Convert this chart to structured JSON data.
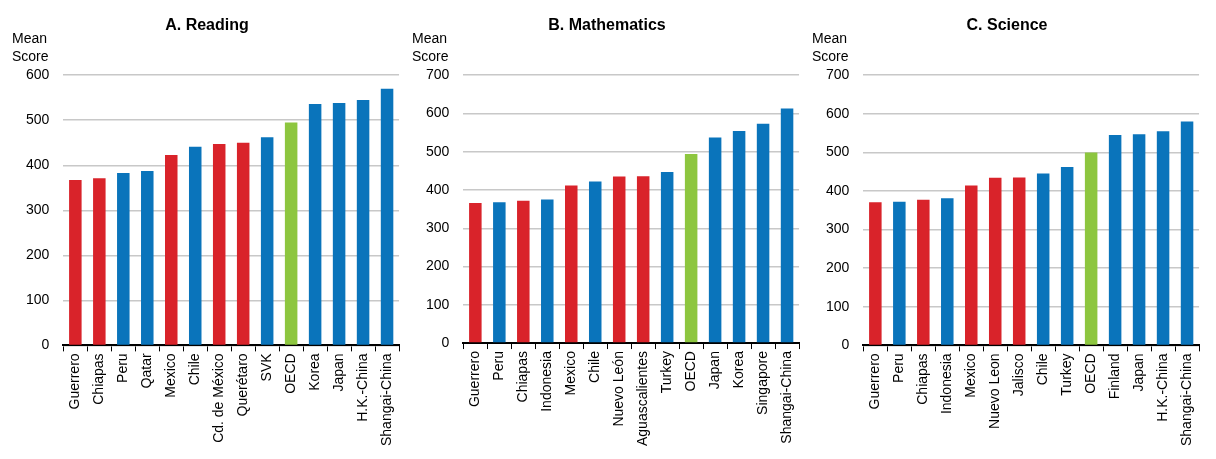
{
  "chart_data": [
    {
      "type": "bar",
      "title": "A. Reading",
      "ylabel": "Mean Score",
      "categories": [
        "Guerrero",
        "Chiapas",
        "Peru",
        "Qatar",
        "Mexico",
        "Chile",
        "Cd. de México",
        "Querétaro",
        "SVK",
        "OECD",
        "Korea",
        "Japan",
        "H.K.-China",
        "Shangai-China"
      ],
      "values": [
        367,
        371,
        383,
        387,
        423,
        441,
        447,
        450,
        462,
        495,
        536,
        538,
        545,
        570
      ],
      "colors": [
        "#d9232a",
        "#d9232a",
        "#0a74bb",
        "#0a74bb",
        "#d9232a",
        "#0a74bb",
        "#d9232a",
        "#d9232a",
        "#0a74bb",
        "#8dc63f",
        "#0a74bb",
        "#0a74bb",
        "#0a74bb",
        "#0a74bb"
      ],
      "ylim": [
        0,
        600
      ],
      "yticks": [
        0,
        100,
        200,
        300,
        400,
        500,
        600
      ],
      "grid": "y"
    },
    {
      "type": "bar",
      "title": "B. Mathematics",
      "ylabel": "Mean Score",
      "categories": [
        "Guerrero",
        "Peru",
        "Chiapas",
        "Indonesia",
        "Mexico",
        "Chile",
        "Nuevo León",
        "Aguascalientes",
        "Turkey",
        "OECD",
        "Japan",
        "Korea",
        "Singapore",
        "Shangai-China"
      ],
      "values": [
        366,
        368,
        372,
        375,
        412,
        422,
        435,
        436,
        447,
        494,
        537,
        554,
        573,
        613
      ],
      "colors": [
        "#d9232a",
        "#0a74bb",
        "#d9232a",
        "#0a74bb",
        "#d9232a",
        "#0a74bb",
        "#d9232a",
        "#d9232a",
        "#0a74bb",
        "#8dc63f",
        "#0a74bb",
        "#0a74bb",
        "#0a74bb",
        "#0a74bb"
      ],
      "ylim": [
        0,
        700
      ],
      "yticks": [
        0,
        100,
        200,
        300,
        400,
        500,
        600,
        700
      ],
      "grid": "y"
    },
    {
      "type": "bar",
      "title": "C. Science",
      "ylabel": "Mean Score",
      "categories": [
        "Guerrero",
        "Peru",
        "Chiapas",
        "Indonesia",
        "Mexico",
        "Nuevo Leon",
        "Jalisco",
        "Chile",
        "Turkey",
        "OECD",
        "Finland",
        "Japan",
        "H.K.-China",
        "Shangai-China"
      ],
      "values": [
        371,
        372,
        377,
        381,
        414,
        434,
        435,
        445,
        462,
        500,
        545,
        547,
        555,
        580
      ],
      "colors": [
        "#d9232a",
        "#0a74bb",
        "#d9232a",
        "#0a74bb",
        "#d9232a",
        "#d9232a",
        "#d9232a",
        "#0a74bb",
        "#0a74bb",
        "#8dc63f",
        "#0a74bb",
        "#0a74bb",
        "#0a74bb",
        "#0a74bb"
      ],
      "ylim": [
        0,
        700
      ],
      "yticks": [
        0,
        100,
        200,
        300,
        400,
        500,
        600,
        700
      ],
      "grid": "y"
    }
  ]
}
